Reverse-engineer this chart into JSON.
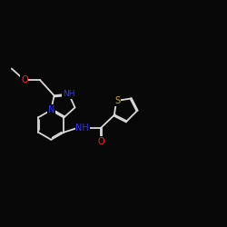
{
  "background_color": "#080808",
  "bond_color": "#d8d8d8",
  "atom_colors": {
    "N": "#3333ff",
    "O": "#ff2020",
    "S": "#ccaa00",
    "C": "#d8d8d8"
  },
  "figsize": [
    2.5,
    2.5
  ],
  "dpi": 100,
  "lw": 1.3,
  "fontsize": 7.0
}
